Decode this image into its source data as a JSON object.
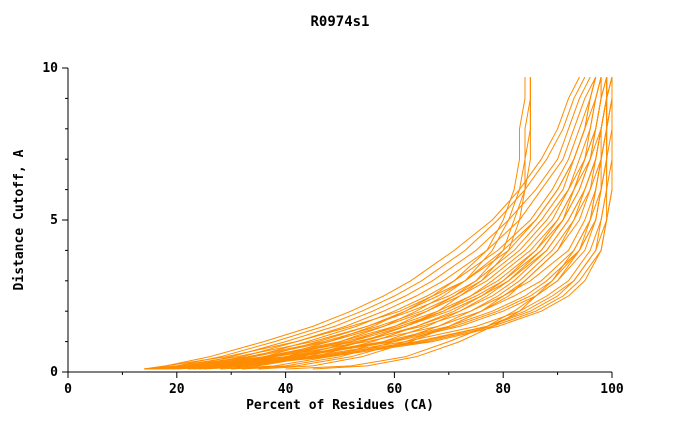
{
  "chart_data": {
    "type": "line",
    "title": "R0974s1",
    "xlabel": "Percent of Residues (CA)",
    "ylabel": "Distance Cutoff, A",
    "xlim": [
      0,
      100
    ],
    "ylim": [
      0,
      10
    ],
    "xticks_major": [
      0,
      20,
      40,
      60,
      80,
      100
    ],
    "xticks_minor": [
      10,
      30,
      50,
      70,
      90
    ],
    "yticks_major": [
      0,
      5,
      10
    ],
    "yticks_minor": [
      1,
      2,
      3,
      4,
      6,
      7,
      8,
      9
    ],
    "line_color": "#ff8c00",
    "background": "#ffffff",
    "axis_color": "#000000",
    "legend": "none",
    "grid": false,
    "cutoffs": [
      0.1,
      0.2,
      0.5,
      1,
      1.5,
      2,
      2.5,
      3,
      4,
      5,
      6,
      7,
      8,
      9,
      9.7
    ],
    "series": [
      [
        14,
        28,
        45,
        64,
        77,
        85,
        90,
        93,
        97,
        98,
        99,
        99,
        99,
        99,
        99
      ],
      [
        15,
        30,
        46,
        66,
        78,
        86,
        91,
        94,
        98,
        99,
        100,
        100,
        100,
        100,
        100
      ],
      [
        14,
        26,
        42,
        60,
        72,
        80,
        86,
        90,
        95,
        97,
        98,
        99,
        99,
        100,
        100
      ],
      [
        15,
        24,
        40,
        58,
        70,
        78,
        84,
        88,
        94,
        96,
        98,
        98,
        99,
        99,
        99
      ],
      [
        16,
        27,
        44,
        62,
        75,
        83,
        88,
        92,
        96,
        98,
        99,
        99,
        100,
        100,
        100
      ],
      [
        14,
        25,
        41,
        59,
        71,
        79,
        85,
        89,
        94,
        97,
        98,
        99,
        99,
        99,
        100
      ],
      [
        16,
        29,
        47,
        65,
        77,
        84,
        89,
        93,
        97,
        99,
        99,
        100,
        100,
        100,
        100
      ],
      [
        15,
        23,
        38,
        55,
        68,
        76,
        82,
        87,
        93,
        96,
        97,
        98,
        99,
        99,
        99
      ],
      [
        17,
        31,
        48,
        67,
        79,
        87,
        92,
        95,
        98,
        99,
        100,
        100,
        100,
        100,
        100
      ],
      [
        14,
        22,
        36,
        53,
        65,
        74,
        80,
        85,
        92,
        95,
        97,
        98,
        98,
        99,
        99
      ],
      [
        15,
        22,
        34,
        48,
        58,
        66,
        72,
        77,
        84,
        89,
        92,
        95,
        96,
        97,
        98
      ],
      [
        16,
        24,
        36,
        50,
        60,
        68,
        74,
        79,
        86,
        90,
        93,
        95,
        97,
        98,
        98
      ],
      [
        14,
        20,
        31,
        45,
        55,
        63,
        70,
        75,
        82,
        87,
        91,
        93,
        95,
        96,
        97
      ],
      [
        17,
        26,
        38,
        52,
        62,
        70,
        76,
        81,
        87,
        91,
        94,
        96,
        97,
        98,
        99
      ],
      [
        14,
        18,
        29,
        42,
        52,
        61,
        67,
        73,
        81,
        86,
        90,
        93,
        95,
        96,
        97
      ],
      [
        18,
        28,
        40,
        54,
        64,
        72,
        78,
        82,
        88,
        92,
        95,
        97,
        98,
        99,
        99
      ],
      [
        15,
        21,
        33,
        47,
        57,
        65,
        71,
        76,
        83,
        88,
        92,
        94,
        96,
        97,
        98
      ],
      [
        16,
        25,
        37,
        51,
        61,
        69,
        75,
        80,
        86,
        91,
        93,
        96,
        97,
        98,
        98
      ],
      [
        15,
        20,
        28,
        38,
        47,
        54,
        60,
        65,
        73,
        79,
        84,
        88,
        91,
        93,
        95
      ],
      [
        16,
        22,
        30,
        40,
        49,
        56,
        62,
        67,
        75,
        81,
        86,
        90,
        92,
        94,
        96
      ],
      [
        17,
        24,
        32,
        42,
        51,
        58,
        64,
        69,
        77,
        83,
        87,
        91,
        93,
        95,
        97
      ],
      [
        14,
        18,
        26,
        36,
        45,
        52,
        58,
        63,
        71,
        78,
        83,
        87,
        90,
        92,
        94
      ],
      [
        18,
        26,
        34,
        44,
        53,
        60,
        66,
        71,
        79,
        85,
        89,
        92,
        94,
        96,
        97
      ],
      [
        19,
        28,
        36,
        46,
        55,
        62,
        68,
        73,
        80,
        86,
        90,
        93,
        95,
        97,
        98
      ],
      [
        20,
        30,
        40,
        50,
        58,
        64,
        69,
        73,
        78,
        81,
        83,
        84,
        84,
        85,
        85
      ],
      [
        22,
        32,
        42,
        52,
        60,
        66,
        71,
        75,
        80,
        82,
        84,
        84,
        85,
        85,
        85
      ],
      [
        19,
        28,
        38,
        48,
        56,
        62,
        67,
        71,
        77,
        80,
        82,
        83,
        83,
        84,
        84
      ],
      [
        23,
        34,
        44,
        54,
        62,
        68,
        72,
        76,
        81,
        83,
        84,
        85,
        85,
        85,
        85
      ],
      [
        25,
        35,
        45,
        56,
        64,
        71,
        76,
        80,
        87,
        91,
        94,
        96,
        98,
        99,
        99
      ],
      [
        30,
        40,
        50,
        60,
        68,
        74,
        79,
        83,
        89,
        93,
        95,
        97,
        98,
        99,
        100
      ],
      [
        28,
        38,
        48,
        58,
        66,
        72,
        77,
        81,
        88,
        92,
        95,
        97,
        98,
        99,
        99
      ],
      [
        24,
        33,
        43,
        54,
        62,
        69,
        74,
        78,
        85,
        90,
        93,
        95,
        97,
        98,
        99
      ],
      [
        35,
        45,
        54,
        63,
        70,
        76,
        80,
        84,
        90,
        93,
        96,
        97,
        98,
        99,
        99
      ],
      [
        32,
        42,
        52,
        62,
        70,
        76,
        81,
        84,
        90,
        94,
        96,
        98,
        99,
        99,
        100
      ],
      [
        45,
        55,
        64,
        72,
        78,
        83,
        86,
        89,
        93,
        96,
        97,
        98,
        99,
        100,
        100
      ],
      [
        40,
        52,
        62,
        70,
        77,
        82,
        86,
        90,
        94,
        97,
        98,
        99,
        99,
        100,
        100
      ]
    ]
  }
}
